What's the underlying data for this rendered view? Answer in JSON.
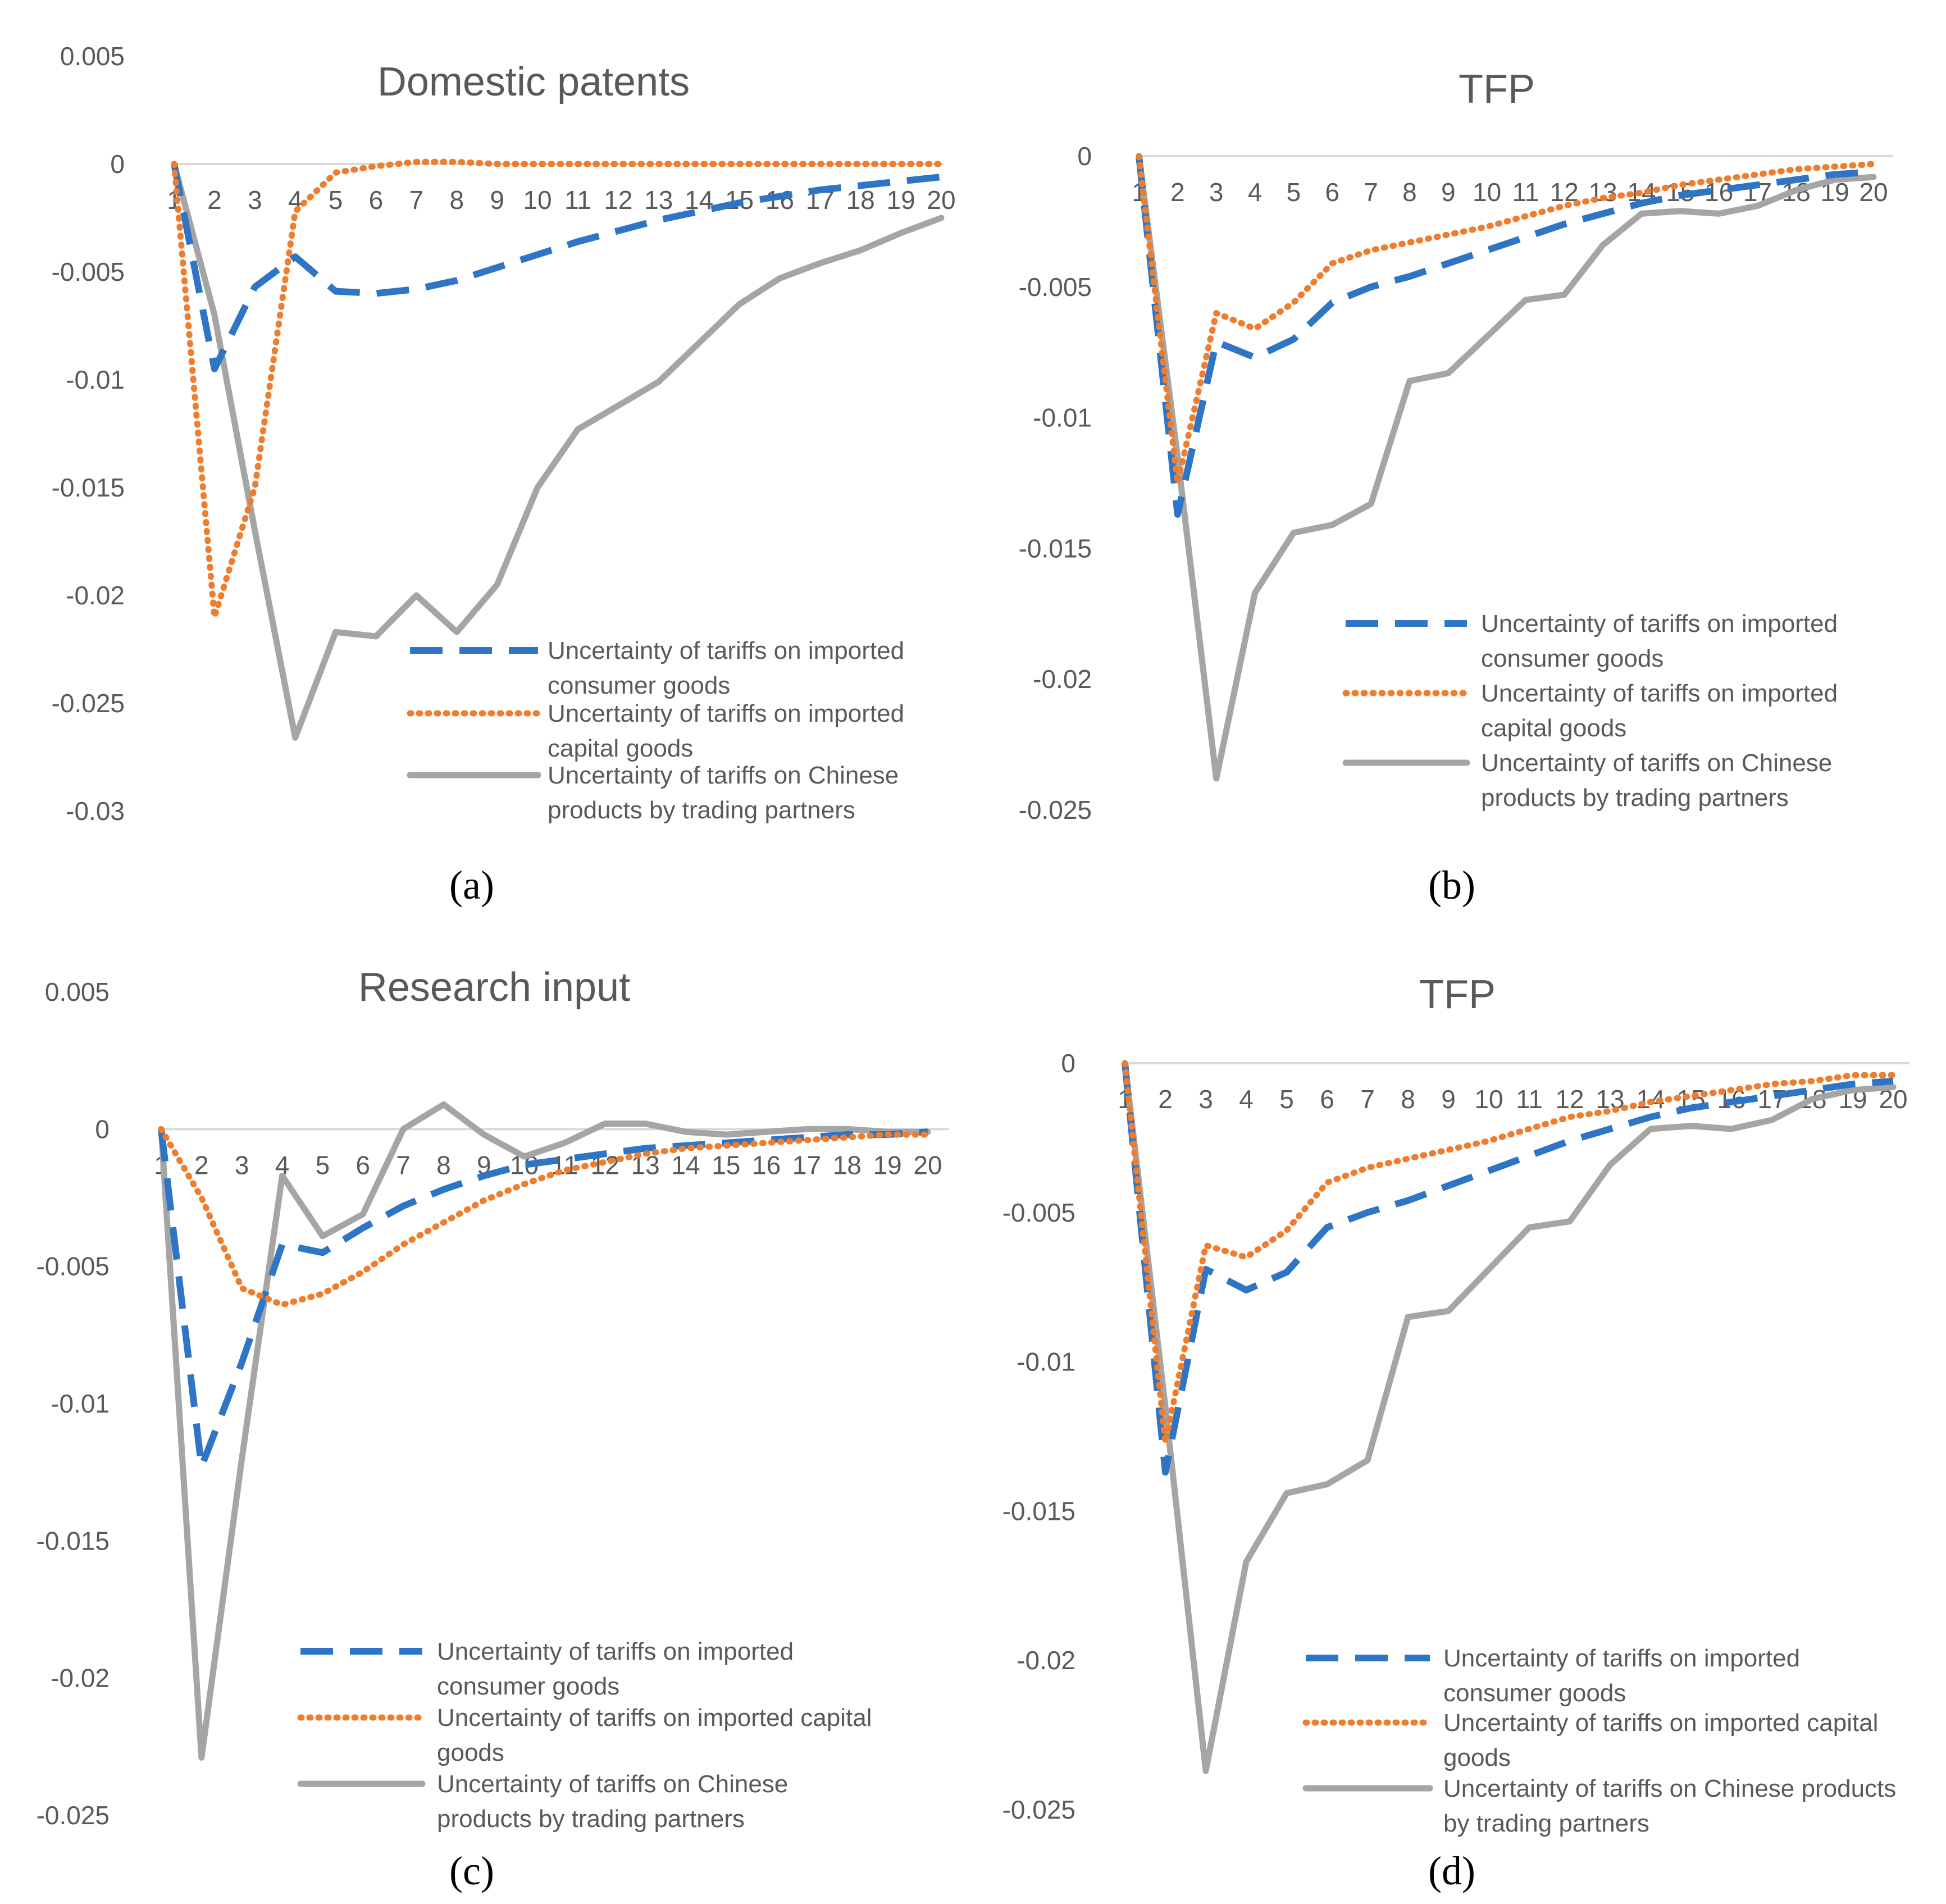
{
  "colors": {
    "consumer": "#2E75C5",
    "capital": "#F07D2D",
    "partners": "#A5A5A5",
    "axis": "#D9D9D9",
    "text": "#595959"
  },
  "chart_data": [
    {
      "type": "line",
      "panel": "(a)",
      "title": "Domestic patents",
      "x": [
        1,
        2,
        3,
        4,
        5,
        6,
        7,
        8,
        9,
        10,
        11,
        12,
        13,
        14,
        15,
        16,
        17,
        18,
        19,
        20
      ],
      "ylim": [
        -0.03,
        0.005
      ],
      "yticks": [
        "0.005",
        "0",
        "-0.005",
        "-0.01",
        "-0.015",
        "-0.02",
        "-0.025",
        "-0.03"
      ],
      "series": [
        {
          "key": "consumer",
          "name": "Uncertainty of tariffs on imported consumer goods",
          "legend_lines": [
            "Uncertainty of tariffs on imported",
            "consumer goods"
          ],
          "values": [
            0,
            -0.0095,
            -0.0057,
            -0.0043,
            -0.0059,
            -0.006,
            -0.0058,
            -0.0054,
            -0.0048,
            -0.0042,
            -0.0036,
            -0.0031,
            -0.0026,
            -0.0022,
            -0.0018,
            -0.0015,
            -0.0012,
            -0.001,
            -0.0008,
            -0.0006
          ]
        },
        {
          "key": "capital",
          "name": "Uncertainty of tariffs on imported capital goods",
          "legend_lines": [
            "Uncertainty of tariffs on imported",
            "capital goods"
          ],
          "values": [
            0,
            -0.021,
            -0.015,
            -0.0022,
            -0.0004,
            -0.0001,
            0.0001,
            0.0001,
            0,
            0,
            0,
            0,
            0,
            0,
            0,
            0,
            0,
            0,
            0,
            0
          ]
        },
        {
          "key": "partners",
          "name": "Uncertainty of tariffs on Chinese products by trading partners",
          "legend_lines": [
            "Uncertainty of tariffs on Chinese",
            "products by trading partners"
          ],
          "values": [
            0,
            -0.007,
            -0.017,
            -0.0266,
            -0.0217,
            -0.0219,
            -0.02,
            -0.0217,
            -0.0195,
            -0.015,
            -0.0123,
            -0.0112,
            -0.0101,
            -0.0083,
            -0.0065,
            -0.0053,
            -0.0046,
            -0.004,
            -0.0032,
            -0.0025
          ]
        }
      ]
    },
    {
      "type": "line",
      "panel": "(b)",
      "title": "TFP",
      "x": [
        1,
        2,
        3,
        4,
        5,
        6,
        7,
        8,
        9,
        10,
        11,
        12,
        13,
        14,
        15,
        16,
        17,
        18,
        19,
        20
      ],
      "ylim": [
        -0.025,
        0
      ],
      "yticks": [
        "0",
        "-0.005",
        "-0.01",
        "-0.015",
        "-0.02",
        "-0.025"
      ],
      "series": [
        {
          "key": "consumer",
          "name": "Uncertainty of tariffs on imported consumer goods",
          "legend_lines": [
            "Uncertainty of tariffs on imported",
            "consumer goods"
          ],
          "values": [
            0,
            -0.0137,
            -0.0071,
            -0.0077,
            -0.007,
            -0.0056,
            -0.005,
            -0.0046,
            -0.0041,
            -0.0036,
            -0.0031,
            -0.0026,
            -0.0022,
            -0.0018,
            -0.0015,
            -0.0013,
            -0.0011,
            -0.0009,
            -0.0007,
            -0.0006
          ]
        },
        {
          "key": "capital",
          "name": "Uncertainty of tariffs on imported capital goods",
          "legend_lines": [
            "Uncertainty of tariffs on imported",
            "capital goods"
          ],
          "values": [
            0,
            -0.0125,
            -0.006,
            -0.0066,
            -0.0056,
            -0.0041,
            -0.0036,
            -0.0033,
            -0.003,
            -0.0027,
            -0.0023,
            -0.0019,
            -0.0016,
            -0.0014,
            -0.0011,
            -0.0009,
            -0.0007,
            -0.0005,
            -0.0004,
            -0.0003
          ]
        },
        {
          "key": "partners",
          "name": "Uncertainty of tariffs on Chinese products by trading partners",
          "legend_lines": [
            "Uncertainty of tariffs on Chinese",
            "products by trading partners"
          ],
          "values": [
            0,
            -0.0115,
            -0.0238,
            -0.0167,
            -0.0144,
            -0.0141,
            -0.0133,
            -0.0086,
            -0.0083,
            -0.0069,
            -0.0055,
            -0.0053,
            -0.0034,
            -0.0022,
            -0.0021,
            -0.0022,
            -0.0019,
            -0.0013,
            -0.0009,
            -0.0008
          ]
        }
      ]
    },
    {
      "type": "line",
      "panel": "(c)",
      "title": "Research input",
      "x": [
        1,
        2,
        3,
        4,
        5,
        6,
        7,
        8,
        9,
        10,
        11,
        12,
        13,
        14,
        15,
        16,
        17,
        18,
        19,
        20
      ],
      "ylim": [
        -0.025,
        0.005
      ],
      "yticks": [
        "0.005",
        "0",
        "-0.005",
        "-0.01",
        "-0.015",
        "-0.02",
        "-0.025"
      ],
      "series": [
        {
          "key": "consumer",
          "name": "Uncertainty of tariffs on imported consumer goods",
          "legend_lines": [
            "Uncertainty of tariffs on imported",
            "consumer goods"
          ],
          "values": [
            0,
            -0.0123,
            -0.0085,
            -0.0042,
            -0.0045,
            -0.0036,
            -0.0028,
            -0.0022,
            -0.0017,
            -0.0013,
            -0.0011,
            -0.0009,
            -0.0007,
            -0.0006,
            -0.0005,
            -0.0004,
            -0.0003,
            -0.0002,
            -0.0002,
            -0.0001
          ]
        },
        {
          "key": "capital",
          "name": "Uncertainty of tariffs on imported capital goods",
          "legend_lines": [
            "Uncertainty of tariffs on imported capital",
            "goods"
          ],
          "values": [
            0,
            -0.0025,
            -0.0058,
            -0.0064,
            -0.006,
            -0.0052,
            -0.0042,
            -0.0034,
            -0.0026,
            -0.002,
            -0.0015,
            -0.0012,
            -0.0009,
            -0.0007,
            -0.0006,
            -0.0005,
            -0.0004,
            -0.0003,
            -0.0002,
            -0.0002
          ]
        },
        {
          "key": "partners",
          "name": "Uncertainty of tariffs on Chinese products by trading partners",
          "legend_lines": [
            "Uncertainty of tariffs on Chinese",
            "products by trading partners"
          ],
          "values": [
            0,
            -0.0229,
            -0.012,
            -0.0017,
            -0.0039,
            -0.0031,
            0,
            0.0009,
            -0.0002,
            -0.001,
            -0.0005,
            0.0002,
            0.0002,
            -0.0001,
            -0.0002,
            -0.0001,
            0,
            0,
            -0.0001,
            -0.0001
          ]
        }
      ]
    },
    {
      "type": "line",
      "panel": "(d)",
      "title": "TFP",
      "x": [
        1,
        2,
        3,
        4,
        5,
        6,
        7,
        8,
        9,
        10,
        11,
        12,
        13,
        14,
        15,
        16,
        17,
        18,
        19,
        20
      ],
      "ylim": [
        -0.025,
        0
      ],
      "yticks": [
        "0",
        "-0.005",
        "-0.01",
        "-0.015",
        "-0.02",
        "-0.025"
      ],
      "series": [
        {
          "key": "consumer",
          "name": "Uncertainty of tariffs on imported consumer goods",
          "legend_lines": [
            "Uncertainty of tariffs on imported",
            "consumer goods"
          ],
          "values": [
            0,
            -0.0137,
            -0.0069,
            -0.0076,
            -0.007,
            -0.0055,
            -0.005,
            -0.0046,
            -0.0041,
            -0.0036,
            -0.0031,
            -0.0026,
            -0.0022,
            -0.0018,
            -0.0015,
            -0.0013,
            -0.0011,
            -0.0009,
            -0.0007,
            -0.0006
          ]
        },
        {
          "key": "capital",
          "name": "Uncertainty of tariffs on imported capital goods",
          "legend_lines": [
            "Uncertainty of tariffs on imported capital",
            "goods"
          ],
          "values": [
            0,
            -0.0127,
            -0.0061,
            -0.0065,
            -0.0056,
            -0.004,
            -0.0035,
            -0.0032,
            -0.0029,
            -0.0026,
            -0.0022,
            -0.0018,
            -0.0016,
            -0.0013,
            -0.0011,
            -0.0009,
            -0.0007,
            -0.0006,
            -0.0004,
            -0.0004
          ]
        },
        {
          "key": "partners",
          "name": "Uncertainty of tariffs on Chinese products by trading partners",
          "legend_lines": [
            "Uncertainty of tariffs on Chinese products",
            "by trading partners"
          ],
          "values": [
            0,
            -0.0115,
            -0.0237,
            -0.0167,
            -0.0144,
            -0.0141,
            -0.0133,
            -0.0085,
            -0.0083,
            -0.0069,
            -0.0055,
            -0.0053,
            -0.0034,
            -0.0022,
            -0.0021,
            -0.0022,
            -0.0019,
            -0.0012,
            -0.0009,
            -0.0008
          ]
        }
      ]
    }
  ]
}
